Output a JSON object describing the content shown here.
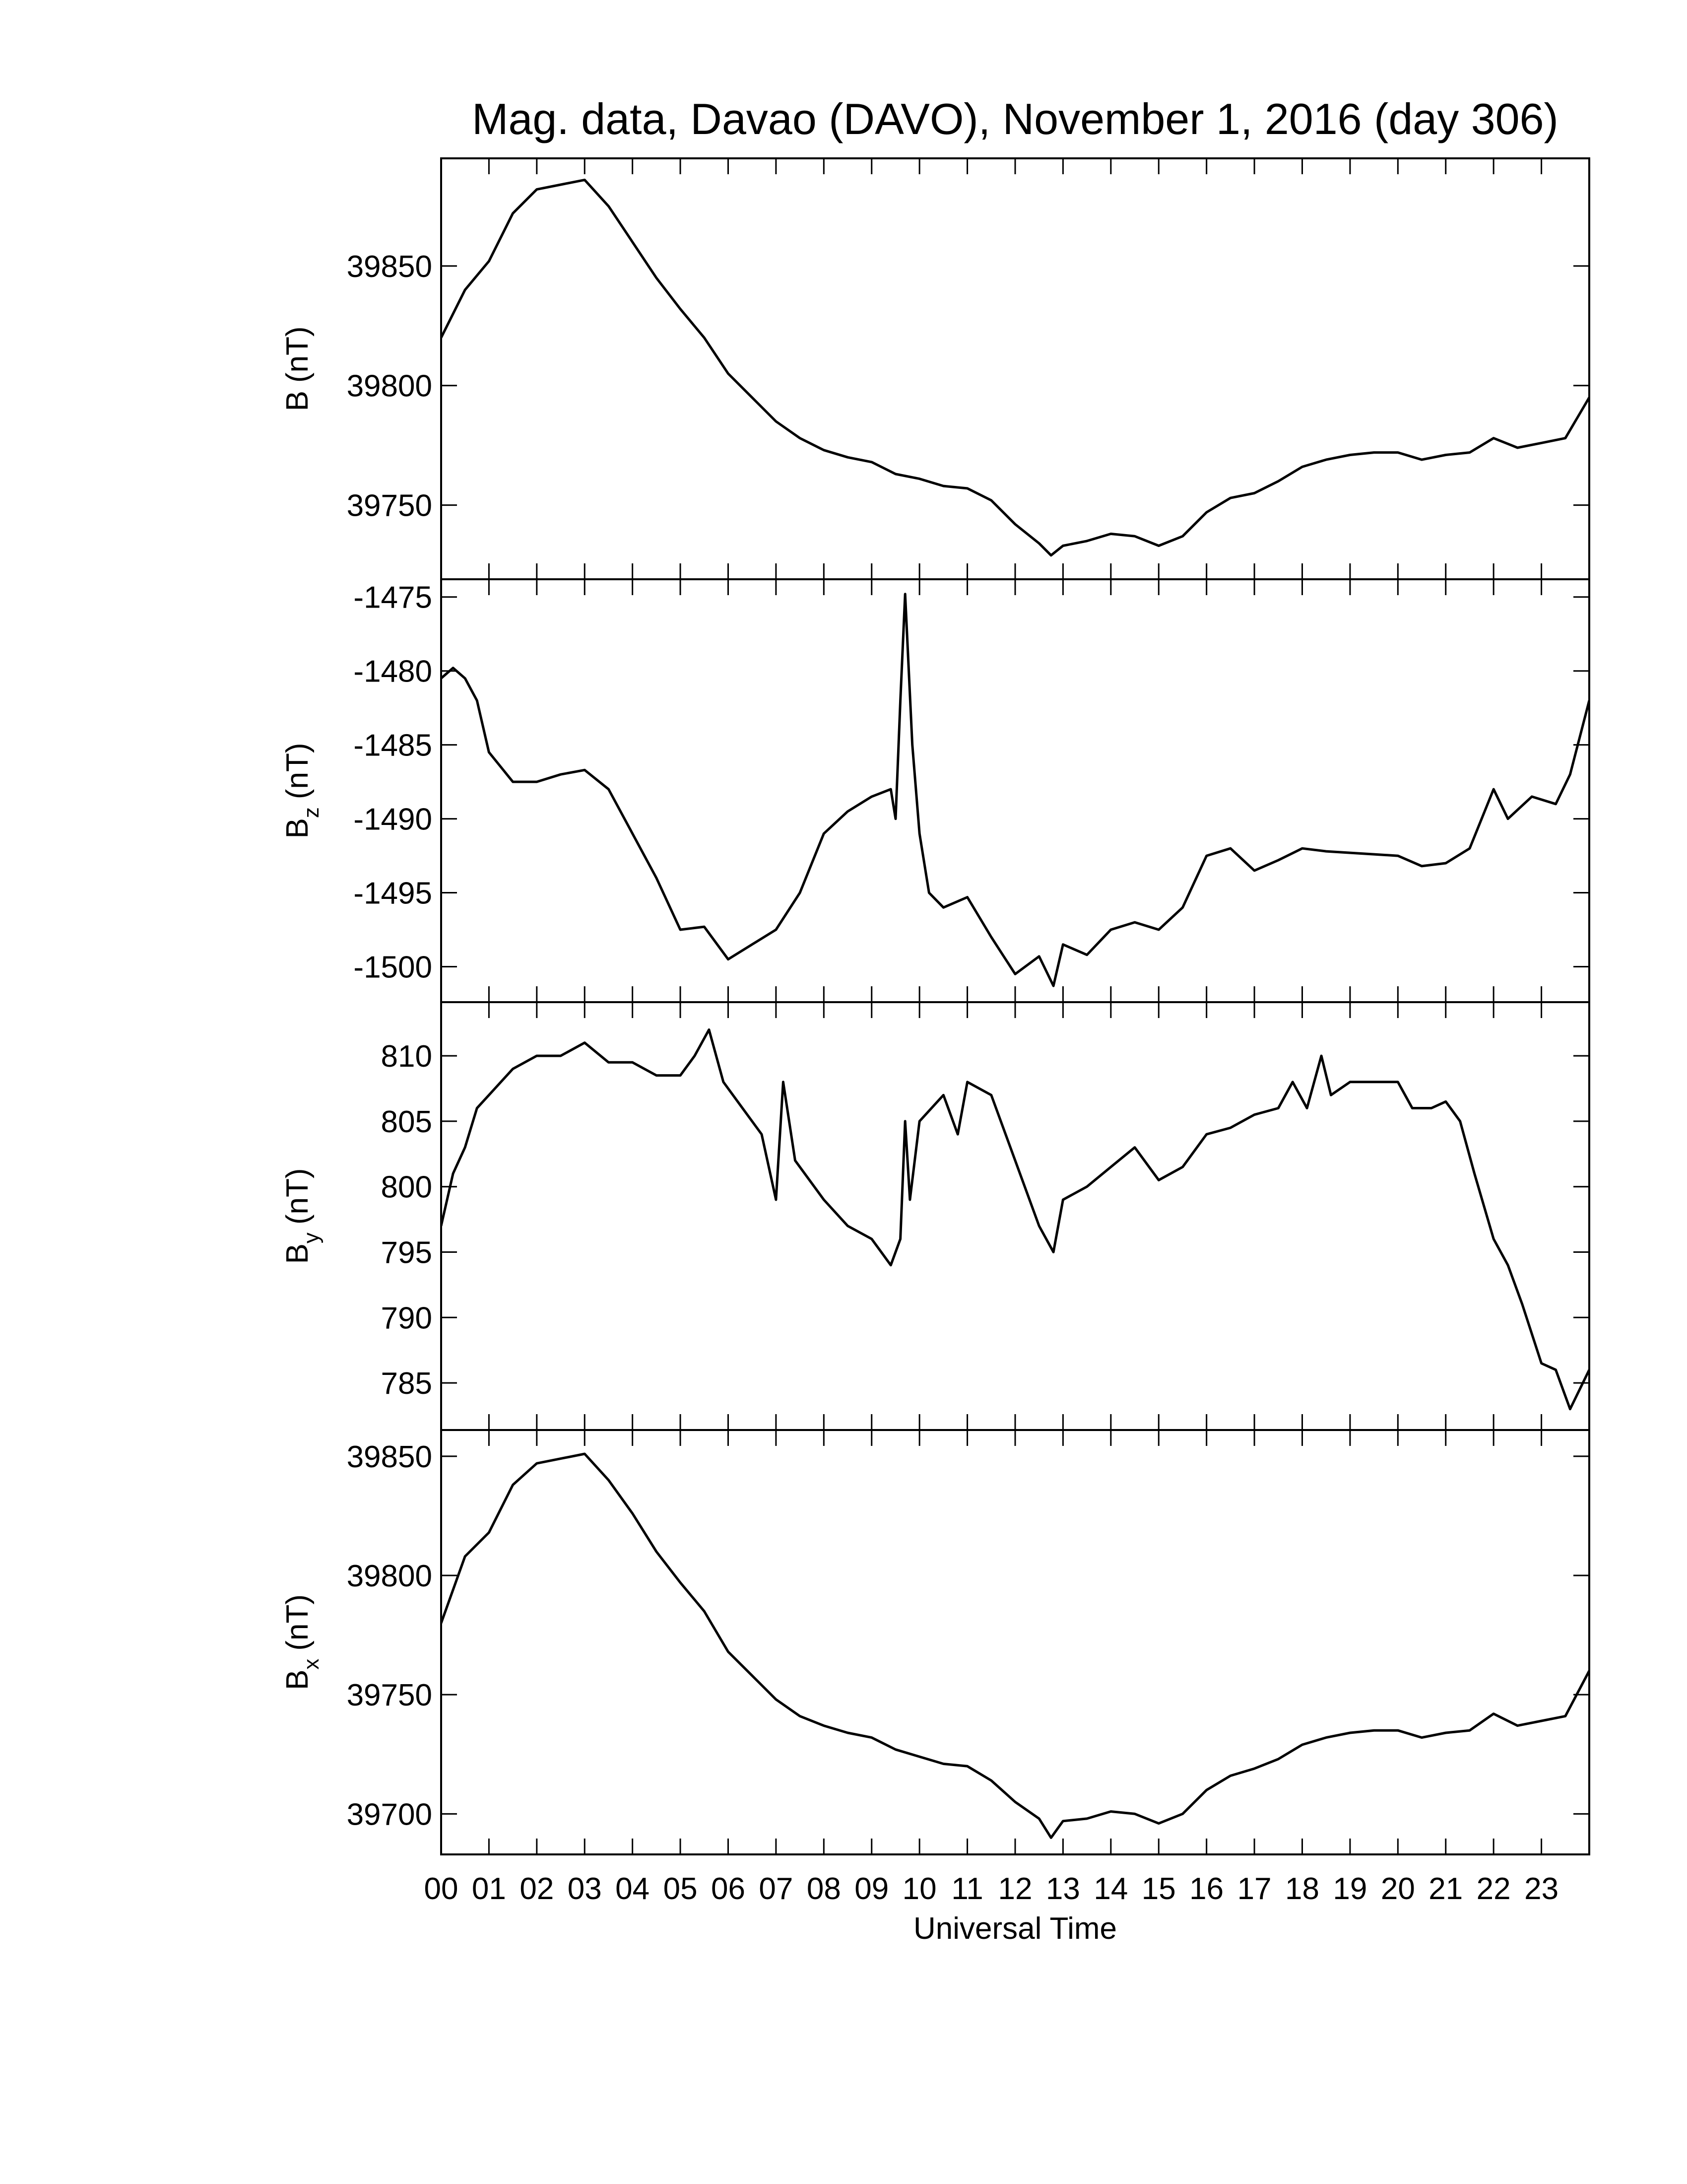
{
  "chart_data": [
    {
      "type": "line",
      "title": "Mag. data, Davao (DAVO), November 1, 2016 (day 306)",
      "ylabel": {
        "symbol": "B",
        "unit": "(nT)"
      },
      "xlim": [
        0,
        24
      ],
      "ylim": [
        39719,
        39895
      ],
      "yticks": [
        39750,
        39800,
        39850
      ],
      "x": [
        0,
        0.5,
        1,
        1.5,
        2,
        2.5,
        3,
        3.5,
        4,
        4.5,
        5,
        5.5,
        6,
        6.5,
        7,
        7.5,
        8,
        8.5,
        9,
        9.5,
        10,
        10.5,
        11,
        11.5,
        12,
        12.5,
        12.75,
        13,
        13.5,
        14,
        14.5,
        15,
        15.5,
        16,
        16.5,
        17,
        17.5,
        18,
        18.5,
        19,
        19.5,
        20,
        20.5,
        21,
        21.5,
        22,
        22.5,
        23,
        23.5,
        24
      ],
      "series": [
        {
          "color": "#000000",
          "values": [
            39820,
            39840,
            39852,
            39872,
            39882,
            39884,
            39886,
            39875,
            39860,
            39845,
            39832,
            39820,
            39805,
            39795,
            39785,
            39778,
            39773,
            39770,
            39768,
            39763,
            39761,
            39758,
            39757,
            39752,
            39742,
            39734,
            39729,
            39733,
            39735,
            39738,
            39737,
            39733,
            39737,
            39747,
            39753,
            39755,
            39760,
            39766,
            39769,
            39771,
            39772,
            39772,
            39769,
            39771,
            39772,
            39778,
            39774,
            39776,
            39778,
            39795
          ]
        }
      ]
    },
    {
      "type": "line",
      "ylabel": {
        "symbol": "B",
        "subscript": "z",
        "unit": "(nT)"
      },
      "xlim": [
        0,
        24
      ],
      "ylim": [
        -1502.4,
        -1473.8
      ],
      "yticks": [
        -1500,
        -1495,
        -1490,
        -1485,
        -1480,
        -1475
      ],
      "x": [
        0,
        0.25,
        0.5,
        0.75,
        1,
        1.5,
        2,
        2.5,
        3,
        3.5,
        4,
        4.5,
        5,
        5.5,
        6,
        6.5,
        7,
        7.5,
        8,
        8.5,
        9,
        9.4,
        9.5,
        9.6,
        9.7,
        9.85,
        10,
        10.2,
        10.5,
        11,
        11.5,
        12,
        12.5,
        12.8,
        13,
        13.5,
        14,
        14.5,
        15,
        15.5,
        16,
        16.5,
        17,
        17.5,
        18,
        18.5,
        19,
        19.5,
        20,
        20.5,
        21,
        21.5,
        22,
        22.3,
        22.8,
        23.3,
        23.6,
        24
      ],
      "series": [
        {
          "color": "#000000",
          "values": [
            -1480.5,
            -1479.8,
            -1480.5,
            -1482,
            -1485.5,
            -1487.5,
            -1487.5,
            -1487,
            -1486.7,
            -1488,
            -1491,
            -1494,
            -1497.5,
            -1497.3,
            -1499.5,
            -1498.5,
            -1497.5,
            -1495,
            -1491,
            -1489.5,
            -1488.5,
            -1488,
            -1490,
            -1482,
            -1474.8,
            -1485,
            -1491,
            -1495,
            -1496,
            -1495.3,
            -1498,
            -1500.5,
            -1499.3,
            -1501.3,
            -1498.5,
            -1499.2,
            -1497.5,
            -1497,
            -1497.5,
            -1496,
            -1492.5,
            -1492,
            -1493.5,
            -1492.8,
            -1492,
            -1492.2,
            -1492.3,
            -1492.4,
            -1492.5,
            -1493.2,
            -1493,
            -1492,
            -1488,
            -1490,
            -1488.5,
            -1489,
            -1487,
            -1482
          ]
        }
      ]
    },
    {
      "type": "line",
      "ylabel": {
        "symbol": "B",
        "subscript": "y",
        "unit": "(nT)"
      },
      "xlim": [
        0,
        24
      ],
      "ylim": [
        781.4,
        814.1
      ],
      "yticks": [
        785,
        790,
        795,
        800,
        805,
        810
      ],
      "x": [
        0,
        0.25,
        0.5,
        0.75,
        1,
        1.5,
        2,
        2.5,
        3,
        3.5,
        4,
        4.5,
        5,
        5.3,
        5.6,
        5.9,
        6.3,
        6.7,
        7,
        7.15,
        7.4,
        8,
        8.5,
        9,
        9.4,
        9.6,
        9.7,
        9.8,
        10,
        10.5,
        10.8,
        11,
        11.5,
        12,
        12.5,
        12.8,
        13,
        13.5,
        14,
        14.5,
        15,
        15.5,
        16,
        16.5,
        17,
        17.5,
        17.8,
        18.1,
        18.4,
        18.6,
        19,
        19.5,
        20,
        20.3,
        20.7,
        21,
        21.3,
        21.6,
        22,
        22.3,
        22.6,
        23,
        23.3,
        23.6,
        24
      ],
      "series": [
        {
          "color": "#000000",
          "values": [
            797,
            801,
            803,
            806,
            807,
            809,
            810,
            810,
            811,
            809.5,
            809.5,
            808.5,
            808.5,
            810,
            812,
            808,
            806,
            804,
            799,
            808,
            802,
            799,
            797,
            796,
            794,
            796,
            805,
            799,
            805,
            807,
            804,
            808,
            807,
            802,
            797,
            795,
            799,
            800,
            801.5,
            803,
            800.5,
            801.5,
            804,
            804.5,
            805.5,
            806,
            808,
            806,
            810,
            807,
            808,
            808,
            808,
            806,
            806,
            806.5,
            805,
            801,
            796,
            794,
            791,
            786.5,
            786,
            783,
            786
          ]
        }
      ]
    },
    {
      "type": "line",
      "ylabel": {
        "symbol": "B",
        "subscript": "x",
        "unit": "(nT)"
      },
      "xlabel": "Universal Time",
      "xlim": [
        0,
        24
      ],
      "ylim": [
        39683,
        39861
      ],
      "yticks": [
        39700,
        39750,
        39800,
        39850
      ],
      "xticks": [
        {
          "value": 0,
          "label": "00"
        },
        {
          "value": 1,
          "label": "01"
        },
        {
          "value": 2,
          "label": "02"
        },
        {
          "value": 3,
          "label": "03"
        },
        {
          "value": 4,
          "label": "04"
        },
        {
          "value": 5,
          "label": "05"
        },
        {
          "value": 6,
          "label": "06"
        },
        {
          "value": 7,
          "label": "07"
        },
        {
          "value": 8,
          "label": "08"
        },
        {
          "value": 9,
          "label": "09"
        },
        {
          "value": 10,
          "label": "10"
        },
        {
          "value": 11,
          "label": "11"
        },
        {
          "value": 12,
          "label": "12"
        },
        {
          "value": 13,
          "label": "13"
        },
        {
          "value": 14,
          "label": "14"
        },
        {
          "value": 15,
          "label": "15"
        },
        {
          "value": 16,
          "label": "16"
        },
        {
          "value": 17,
          "label": "17"
        },
        {
          "value": 18,
          "label": "18"
        },
        {
          "value": 19,
          "label": "19"
        },
        {
          "value": 20,
          "label": "20"
        },
        {
          "value": 21,
          "label": "21"
        },
        {
          "value": 22,
          "label": "22"
        },
        {
          "value": 23,
          "label": "23"
        }
      ],
      "x": [
        0,
        0.5,
        1,
        1.5,
        2,
        2.5,
        3,
        3.5,
        4,
        4.5,
        5,
        5.5,
        6,
        6.5,
        7,
        7.5,
        8,
        8.5,
        9,
        9.5,
        10,
        10.5,
        11,
        11.5,
        12,
        12.5,
        12.75,
        13,
        13.5,
        14,
        14.5,
        15,
        15.5,
        16,
        16.5,
        17,
        17.5,
        18,
        18.5,
        19,
        19.5,
        20,
        20.5,
        21,
        21.5,
        22,
        22.5,
        23,
        23.5,
        24
      ],
      "series": [
        {
          "color": "#000000",
          "values": [
            39780,
            39808,
            39818,
            39838,
            39847,
            39849,
            39851,
            39840,
            39826,
            39810,
            39797,
            39785,
            39768,
            39758,
            39748,
            39741,
            39737,
            39734,
            39732,
            39727,
            39724,
            39721,
            39720,
            39714,
            39705,
            39698,
            39690,
            39697,
            39698,
            39701,
            39700,
            39696,
            39700,
            39710,
            39716,
            39719,
            39723,
            39729,
            39732,
            39734,
            39735,
            39735,
            39732,
            39734,
            39735,
            39742,
            39737,
            39739,
            39741,
            39760
          ]
        }
      ]
    }
  ]
}
